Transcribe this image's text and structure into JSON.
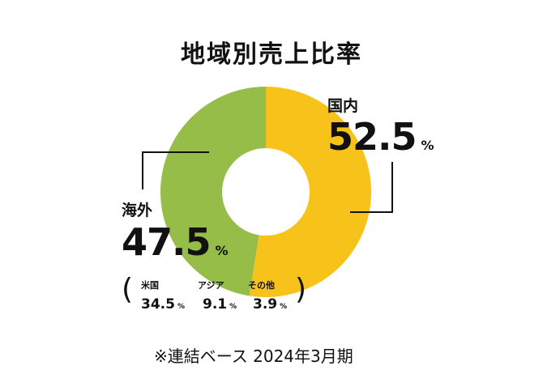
{
  "chart_data": {
    "type": "pie",
    "title": "地域別売上比率",
    "categories": [
      "国内",
      "海外"
    ],
    "values": [
      52.5,
      47.5
    ],
    "unit": "%",
    "colors": [
      "#f7c31a",
      "#95bd48"
    ],
    "breakdown": {
      "parent": "海外",
      "items": [
        {
          "label": "米国",
          "value": "34.5",
          "unit": "%"
        },
        {
          "label": "アジア",
          "value": "9.1",
          "unit": "%"
        },
        {
          "label": "その他",
          "value": "3.9",
          "unit": "%"
        }
      ]
    },
    "note": "※連結ベース 2024年3月期"
  },
  "labels": {
    "domestic": {
      "name": "国内",
      "value": "52.5",
      "unit": "%"
    },
    "overseas": {
      "name": "海外",
      "value": "47.5",
      "unit": "%"
    }
  }
}
